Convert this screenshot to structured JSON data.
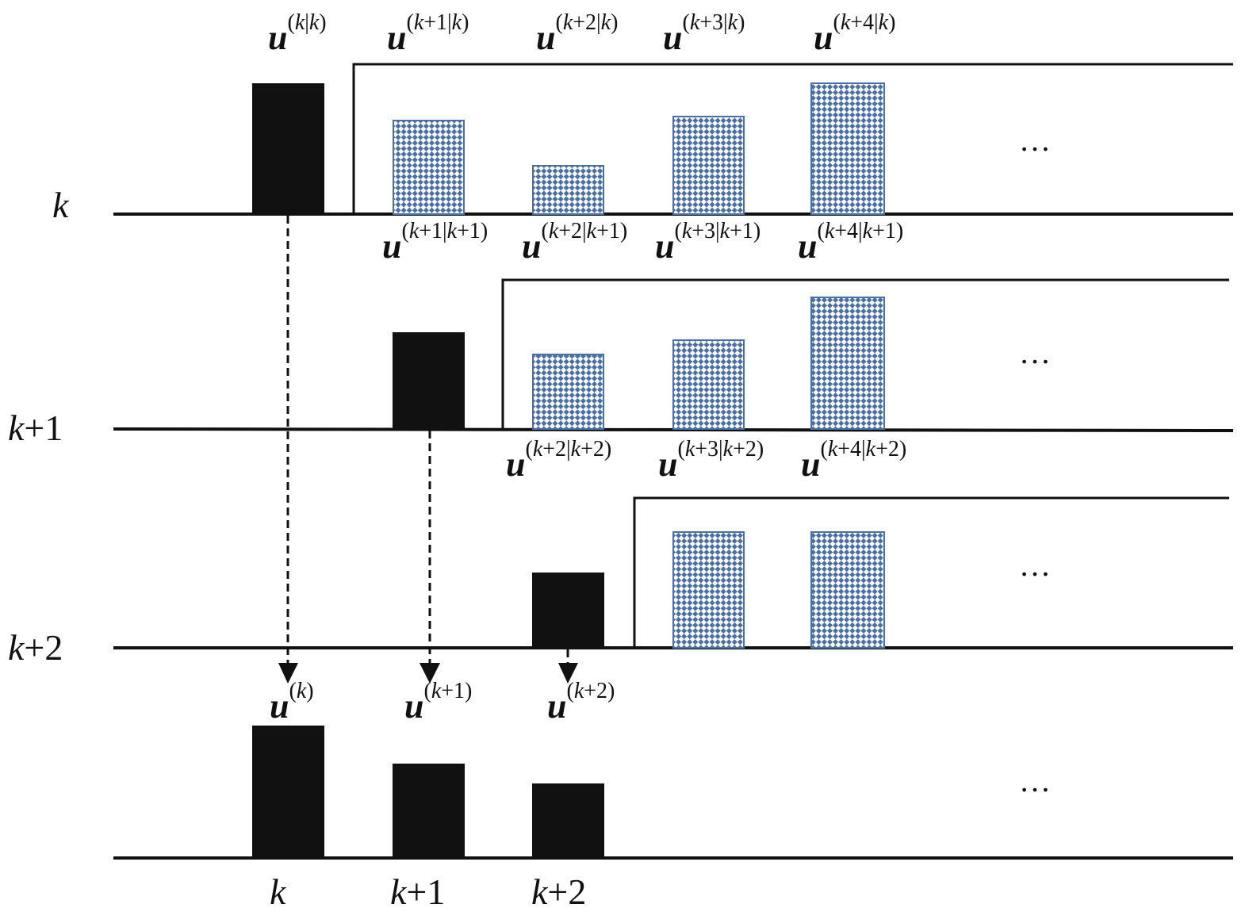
{
  "rows": [
    {
      "axis_label": "k",
      "applied": {
        "label_base": "u",
        "label_sup": "(k|k)"
      },
      "predicted": [
        {
          "label_base": "u",
          "label_sup": "(k+1|k)"
        },
        {
          "label_base": "u",
          "label_sup": "(k+2|k)"
        },
        {
          "label_base": "u",
          "label_sup": "(k+3|k)"
        },
        {
          "label_base": "u",
          "label_sup": "(k+4|k)"
        }
      ],
      "ellipsis": "…"
    },
    {
      "axis_label": "k+1",
      "predicted": [
        {
          "label_base": "u",
          "label_sup": "(k+1|k+1)"
        },
        {
          "label_base": "u",
          "label_sup": "(k+2|k+1)"
        },
        {
          "label_base": "u",
          "label_sup": "(k+3|k+1)"
        },
        {
          "label_base": "u",
          "label_sup": "(k+4|k+1)"
        }
      ],
      "ellipsis": "…"
    },
    {
      "axis_label": "k+2",
      "predicted": [
        {
          "label_base": "u",
          "label_sup": "(k+2|k+2)"
        },
        {
          "label_base": "u",
          "label_sup": "(k+3|k+2)"
        },
        {
          "label_base": "u",
          "label_sup": "(k+4|k+2)"
        }
      ],
      "ellipsis": "…"
    }
  ],
  "output": {
    "labels": [
      {
        "label_base": "u",
        "label_sup": "(k)"
      },
      {
        "label_base": "u",
        "label_sup": "(k+1)"
      },
      {
        "label_base": "u",
        "label_sup": "(k+2)"
      }
    ],
    "ticks": [
      "k",
      "k+1",
      "k+2"
    ],
    "ellipsis": "…"
  },
  "colors": {
    "applied_bar": "#111111",
    "predicted_bar": "#4a6fa5",
    "line": "#111111"
  }
}
